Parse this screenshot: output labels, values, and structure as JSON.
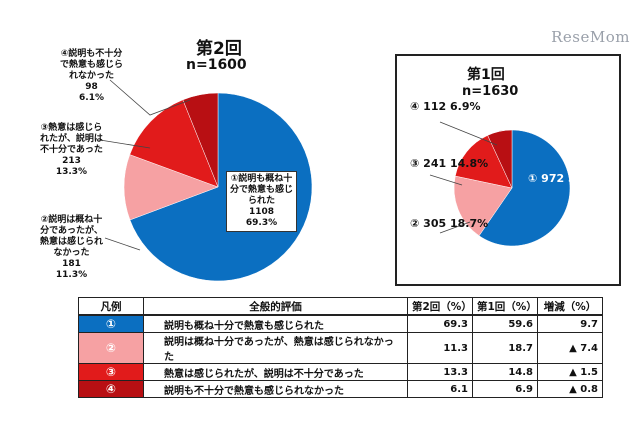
{
  "watermark": "ReseMom",
  "chart_data": [
    {
      "type": "pie",
      "title": "第2回",
      "subtitle": "n=1600",
      "slices": [
        {
          "key": "1",
          "label": "①説明も概ね十分で熱意も感じられた",
          "label_lines": [
            "①説明も概ね十",
            "分で熱意も感じ",
            "られた"
          ],
          "count": "1108",
          "percent_text": "69.3%",
          "value": 69.3,
          "color": "#0b6fc1"
        },
        {
          "key": "2",
          "label": "②説明は概ね十分であったが、熱意は感じられなかった",
          "label_lines": [
            "②説明は概ね十",
            "分であったが、",
            "熱意は感じられ",
            "なかった"
          ],
          "count": "181",
          "percent_text": "11.3%",
          "value": 11.3,
          "color": "#f6a1a3"
        },
        {
          "key": "3",
          "label": "③熱意は感じられたが、説明は不十分であった",
          "label_lines": [
            "③熱意は感じら",
            "れたが、説明は",
            "不十分であった"
          ],
          "count": "213",
          "percent_text": "13.3%",
          "value": 13.3,
          "color": "#e11b1b"
        },
        {
          "key": "4",
          "label": "④説明も不十分で熱意も感じられなかった",
          "label_lines": [
            "④説明も不十分",
            "で熱意も感じら",
            "れなかった"
          ],
          "count": "98",
          "percent_text": "6.1%",
          "value": 6.1,
          "color": "#b80f13"
        }
      ]
    },
    {
      "type": "pie",
      "title": "第1回",
      "subtitle": "n=1630",
      "slices": [
        {
          "key": "1",
          "label": "①",
          "count": "972",
          "percent_text": "59.6%",
          "value": 59.6,
          "color": "#0b6fc1"
        },
        {
          "key": "2",
          "label": "②",
          "count": "305",
          "percent_text": "18.7%",
          "value": 18.7,
          "color": "#f6a1a3"
        },
        {
          "key": "3",
          "label": "③",
          "count": "241",
          "percent_text": "14.8%",
          "value": 14.8,
          "color": "#e11b1b"
        },
        {
          "key": "4",
          "label": "④",
          "count": "112",
          "percent_text": "6.9%",
          "value": 6.9,
          "color": "#b80f13"
        }
      ]
    },
    {
      "type": "table",
      "headers": {
        "legend": "凡例",
        "desc": "全般的評価",
        "r2": "第2回（%）",
        "r1": "第1回（%）",
        "diff": "増減（%）"
      },
      "rows": [
        {
          "mark": "①",
          "desc": "説明も概ね十分で熱意も感じられた",
          "r2": "69.3",
          "r1": "59.6",
          "diff": "9.7",
          "color": "#0b6fc1"
        },
        {
          "mark": "②",
          "desc": "説明は概ね十分であったが、熱意は感じられなかった",
          "r2": "11.3",
          "r1": "18.7",
          "diff": "▲ 7.4",
          "color": "#f6a1a3"
        },
        {
          "mark": "③",
          "desc": "熱意は感じられたが、説明は不十分であった",
          "r2": "13.3",
          "r1": "14.8",
          "diff": "▲ 1.5",
          "color": "#e11b1b"
        },
        {
          "mark": "④",
          "desc": "説明も不十分で熱意も感じられなかった",
          "r2": "6.1",
          "r1": "6.9",
          "diff": "▲ 0.8",
          "color": "#b80f13"
        }
      ]
    }
  ]
}
